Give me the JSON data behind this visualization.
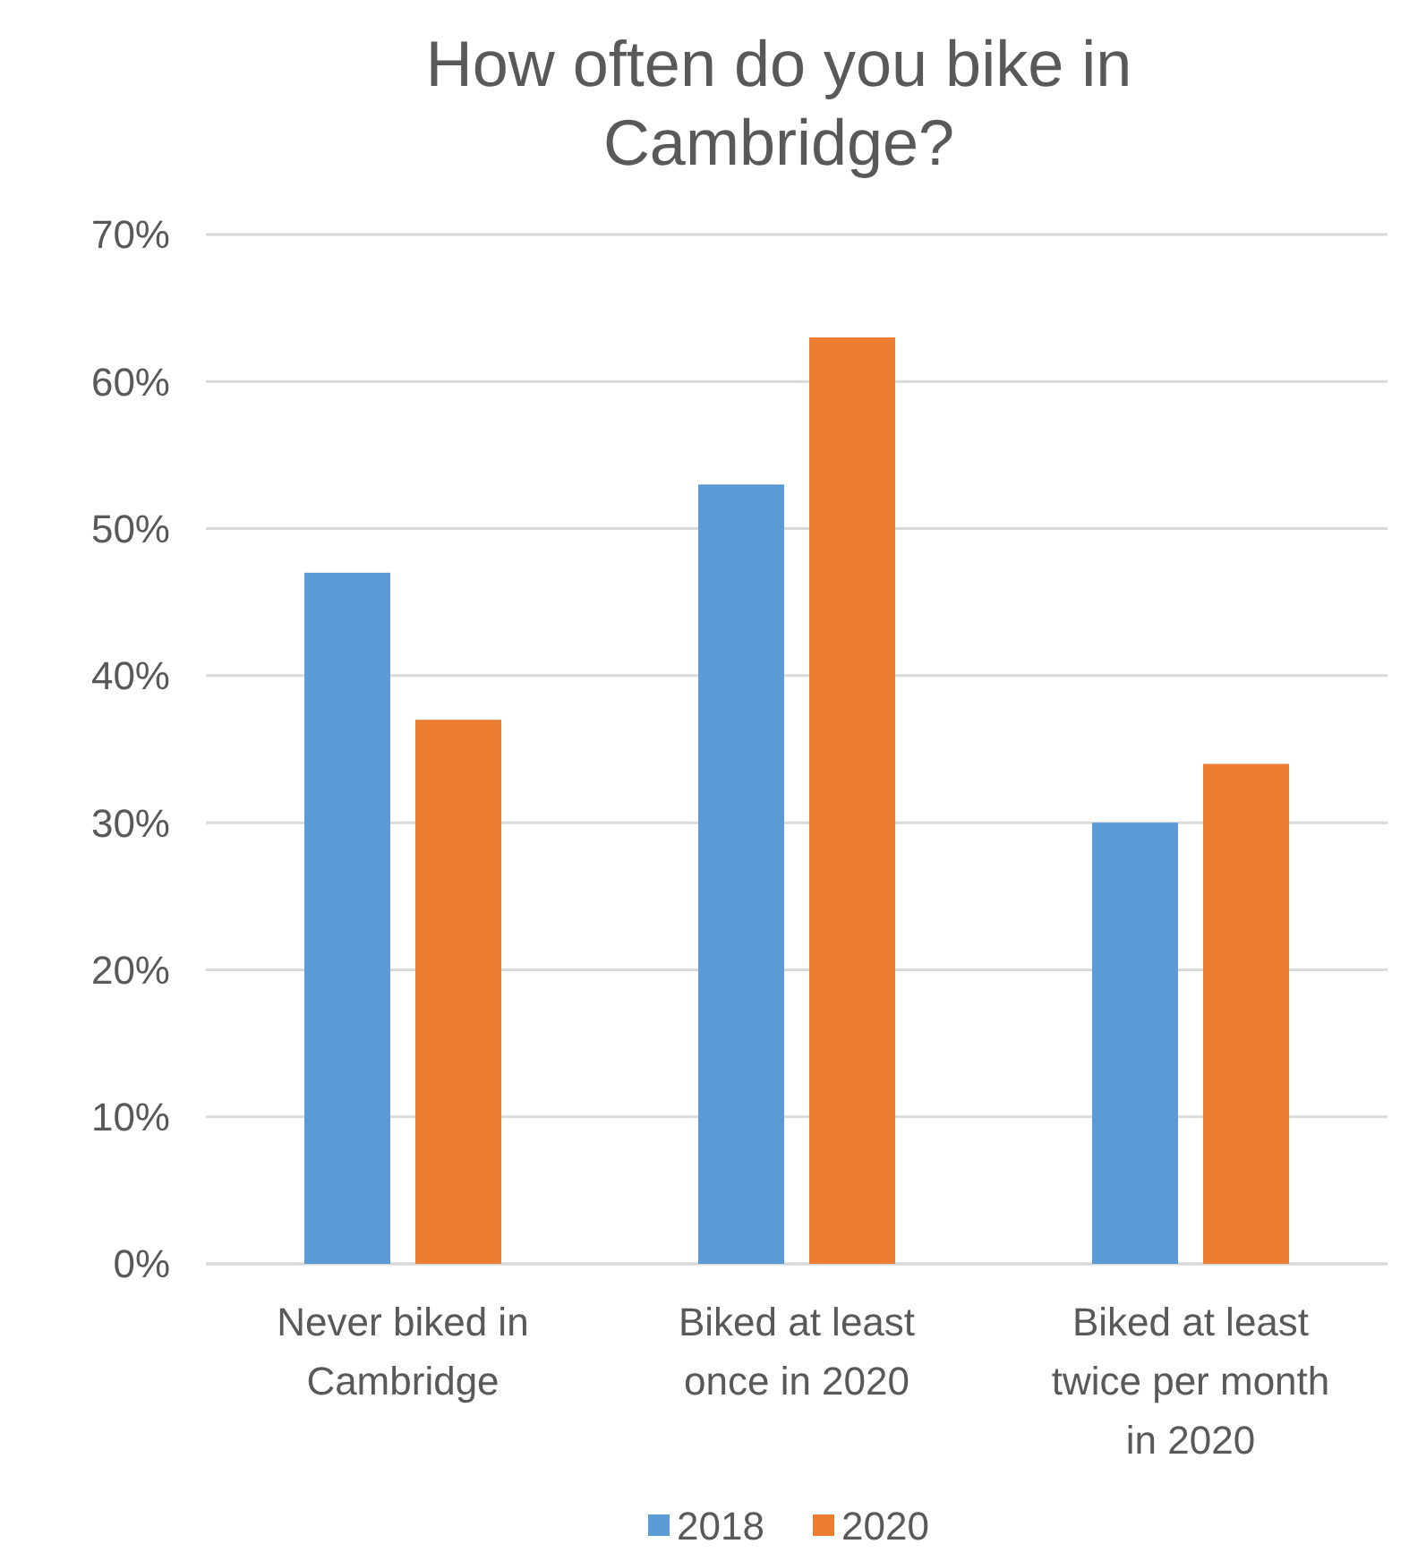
{
  "chart_data": {
    "type": "bar",
    "title": "How often do you bike in Cambridge?",
    "categories": [
      "Never biked in Cambridge",
      "Biked at least once in 2020",
      "Biked at least twice per month in 2020"
    ],
    "series": [
      {
        "name": "2018",
        "color": "#5b9bd5",
        "values": [
          47,
          53,
          30
        ]
      },
      {
        "name": "2020",
        "color": "#ed7d31",
        "values": [
          37,
          63,
          34
        ]
      }
    ],
    "ylim": [
      0,
      70
    ],
    "yticks": [
      {
        "value": 0,
        "label": "0%"
      },
      {
        "value": 10,
        "label": "10%"
      },
      {
        "value": 20,
        "label": "20%"
      },
      {
        "value": 30,
        "label": "30%"
      },
      {
        "value": 40,
        "label": "40%"
      },
      {
        "value": 50,
        "label": "50%"
      },
      {
        "value": 60,
        "label": "60%"
      },
      {
        "value": 70,
        "label": "70%"
      }
    ],
    "grid": "y",
    "legend": "bottom"
  }
}
